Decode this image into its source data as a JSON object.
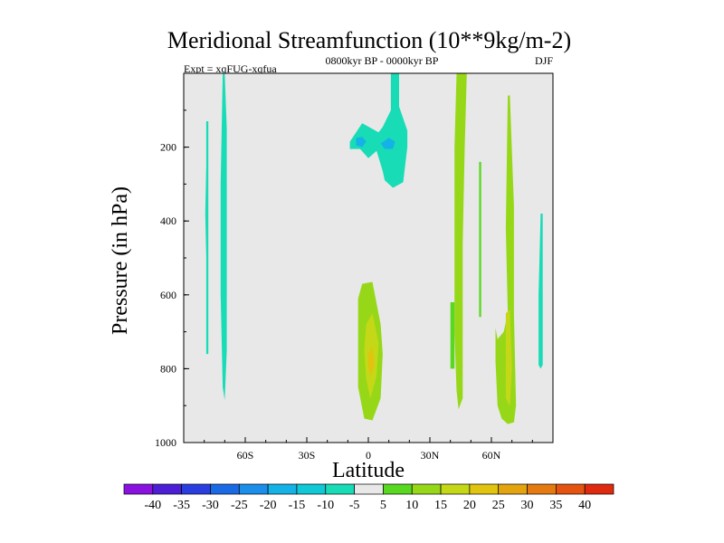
{
  "chart_data": {
    "type": "contour",
    "title": "Meridional Streamfunction (10**9kg/m-2)",
    "left_label": "Expt = xqFUG-xqfua",
    "center_label": "0800kyr BP - 0000kyr BP",
    "right_label": "DJF",
    "xlabel": "Latitude",
    "ylabel": "Pressure (in hPa)",
    "xlim": [
      -90,
      90
    ],
    "ylim": [
      1000,
      0
    ],
    "x_ticks": [
      {
        "value": -60,
        "label": "60S"
      },
      {
        "value": -30,
        "label": "30S"
      },
      {
        "value": 0,
        "label": "0"
      },
      {
        "value": 30,
        "label": "30N"
      },
      {
        "value": 60,
        "label": "60N"
      }
    ],
    "y_ticks": [
      {
        "value": 200,
        "label": "200"
      },
      {
        "value": 400,
        "label": "400"
      },
      {
        "value": 600,
        "label": "600"
      },
      {
        "value": 800,
        "label": "800"
      },
      {
        "value": 1000,
        "label": "1000"
      }
    ],
    "background_color": "#e8e8e8",
    "colorbar": {
      "levels": [
        "-40",
        "-35",
        "-30",
        "-25",
        "-20",
        "-15",
        "-10",
        "-5",
        "5",
        "10",
        "15",
        "20",
        "25",
        "30",
        "35",
        "40"
      ],
      "colors": [
        "#8a12e0",
        "#4c1fd6",
        "#2a3ee0",
        "#1a6ae6",
        "#1a8ee8",
        "#14b2e6",
        "#10c8d6",
        "#18dcb6",
        "#e8e8e8",
        "#58d820",
        "#96d818",
        "#c4d818",
        "#e0c410",
        "#e4a410",
        "#e47a10",
        "#e45410",
        "#e02a10"
      ]
    },
    "regions": [
      {
        "name": "lobe-sh-high-lat",
        "color": "#18dcb6",
        "points": [
          [
            -71,
            1
          ],
          [
            -70,
            1
          ],
          [
            -69,
            150
          ],
          [
            -69,
            450
          ],
          [
            -69,
            750
          ],
          [
            -70,
            885
          ],
          [
            -71,
            850
          ],
          [
            -72,
            600
          ],
          [
            -72,
            300
          ]
        ]
      },
      {
        "name": "lobe-sh-polar",
        "color": "#18dcb6",
        "points": [
          [
            -79,
            130
          ],
          [
            -78,
            130
          ],
          [
            -78,
            300
          ],
          [
            -78,
            500
          ],
          [
            -78,
            760
          ],
          [
            -79,
            760
          ],
          [
            -79,
            500
          ],
          [
            -79.5,
            380
          ],
          [
            -79,
            250
          ]
        ]
      },
      {
        "name": "lobe-upper-tropics-negative",
        "color": "#18dcb6",
        "points": [
          [
            -9,
            185
          ],
          [
            -3,
            135
          ],
          [
            5,
            160
          ],
          [
            7,
            145
          ],
          [
            11,
            100
          ],
          [
            11,
            0
          ],
          [
            15,
            0
          ],
          [
            15,
            90
          ],
          [
            19,
            155
          ],
          [
            19,
            200
          ],
          [
            17,
            295
          ],
          [
            12,
            310
          ],
          [
            8,
            290
          ],
          [
            7,
            265
          ],
          [
            4,
            210
          ],
          [
            0,
            230
          ],
          [
            -4,
            205
          ],
          [
            -9,
            205
          ]
        ]
      },
      {
        "name": "core-upper-tropics-negative",
        "color": "#14b2e6",
        "points": [
          [
            -6,
            175
          ],
          [
            -3,
            172
          ],
          [
            -1,
            185
          ],
          [
            -3,
            200
          ],
          [
            -6,
            195
          ]
        ]
      },
      {
        "name": "core-upper-tropics-negative-2",
        "color": "#14b2e6",
        "points": [
          [
            6,
            190
          ],
          [
            10,
            175
          ],
          [
            13,
            185
          ],
          [
            12,
            205
          ],
          [
            8,
            205
          ]
        ]
      },
      {
        "name": "lobe-lower-tropics-positive",
        "color": "#96d818",
        "points": [
          [
            -5,
            610
          ],
          [
            -3,
            570
          ],
          [
            2,
            565
          ],
          [
            6,
            680
          ],
          [
            7,
            760
          ],
          [
            6,
            880
          ],
          [
            2,
            940
          ],
          [
            -2,
            935
          ],
          [
            -5,
            850
          ],
          [
            -5,
            720
          ]
        ]
      },
      {
        "name": "lobe-lower-tropics-15",
        "color": "#c4d818",
        "points": [
          [
            -1,
            680
          ],
          [
            2,
            650
          ],
          [
            5,
            730
          ],
          [
            4,
            820
          ],
          [
            1,
            880
          ],
          [
            -1,
            830
          ],
          [
            -2,
            750
          ]
        ]
      },
      {
        "name": "lobe-lower-tropics-20",
        "color": "#e0c410",
        "points": [
          [
            0,
            760
          ],
          [
            2,
            740
          ],
          [
            3,
            790
          ],
          [
            1,
            820
          ],
          [
            0,
            800
          ]
        ]
      },
      {
        "name": "column-nh-midlat",
        "color": "#96d818",
        "points": [
          [
            43,
            0
          ],
          [
            48,
            0
          ],
          [
            47,
            200
          ],
          [
            46,
            460
          ],
          [
            46,
            720
          ],
          [
            46,
            880
          ],
          [
            44,
            910
          ],
          [
            43,
            860
          ],
          [
            42,
            700
          ],
          [
            42,
            420
          ],
          [
            42,
            200
          ]
        ]
      },
      {
        "name": "column-nh-midlat-edge",
        "color": "#58d820",
        "points": [
          [
            40,
            620
          ],
          [
            42,
            620
          ],
          [
            42,
            800
          ],
          [
            40,
            800
          ]
        ]
      },
      {
        "name": "column-nh-55",
        "color": "#58d820",
        "points": [
          [
            54,
            240
          ],
          [
            55,
            240
          ],
          [
            55,
            660
          ],
          [
            54,
            660
          ]
        ]
      },
      {
        "name": "column-nh-60",
        "color": "#96d818",
        "points": [
          [
            68,
            60
          ],
          [
            69,
            60
          ],
          [
            71,
            360
          ],
          [
            71,
            650
          ],
          [
            72,
            900
          ],
          [
            71,
            945
          ],
          [
            68,
            950
          ],
          [
            65,
            935
          ],
          [
            63,
            900
          ],
          [
            62,
            780
          ],
          [
            62,
            690
          ],
          [
            63,
            720
          ],
          [
            66,
            700
          ],
          [
            68,
            650
          ],
          [
            67,
            420
          ]
        ]
      },
      {
        "name": "column-nh-60-core",
        "color": "#c4d818",
        "points": [
          [
            67,
            650
          ],
          [
            69,
            640
          ],
          [
            70,
            800
          ],
          [
            69,
            900
          ],
          [
            67,
            880
          ]
        ]
      },
      {
        "name": "column-nh-polar",
        "color": "#18dcb6",
        "points": [
          [
            84,
            380
          ],
          [
            85,
            380
          ],
          [
            85,
            790
          ],
          [
            84,
            800
          ],
          [
            83,
            790
          ],
          [
            83,
            600
          ]
        ]
      }
    ]
  }
}
